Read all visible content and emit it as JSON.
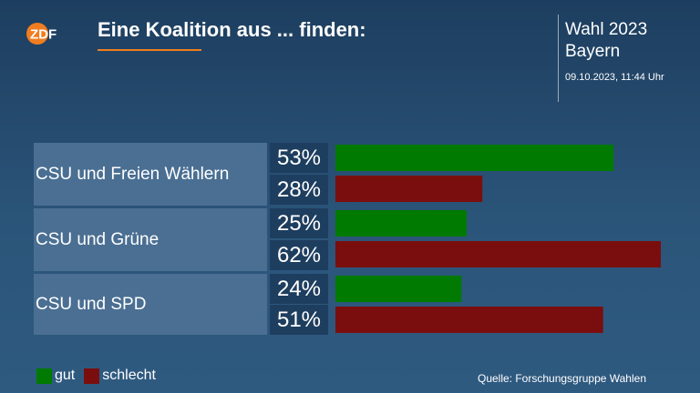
{
  "header": {
    "logo_text": "ZDF",
    "title": "Eine Koalition aus ... finden:",
    "election_title": "Wahl 2023",
    "election_region": "Bayern",
    "timestamp": "09.10.2023, 11:44 Uhr"
  },
  "colors": {
    "gut": "#007a00",
    "schlecht": "#7a0e0e",
    "accent": "#f07d1f"
  },
  "chart_data": {
    "type": "bar",
    "orientation": "horizontal",
    "categories": [
      "CSU und Freien Wählern",
      "CSU und Grüne",
      "CSU und SPD"
    ],
    "series": [
      {
        "name": "gut",
        "values": [
          53,
          25,
          24
        ],
        "labels": [
          "53%",
          "25%",
          "24%"
        ]
      },
      {
        "name": "schlecht",
        "values": [
          28,
          62,
          51
        ],
        "labels": [
          "28%",
          "62%",
          "51%"
        ]
      }
    ],
    "xlim": [
      0,
      62
    ],
    "grid": false,
    "legend_position": "bottom-left"
  },
  "legend": [
    {
      "label": "gut"
    },
    {
      "label": "schlecht"
    }
  ],
  "source": "Quelle: Forschungsgruppe Wahlen"
}
